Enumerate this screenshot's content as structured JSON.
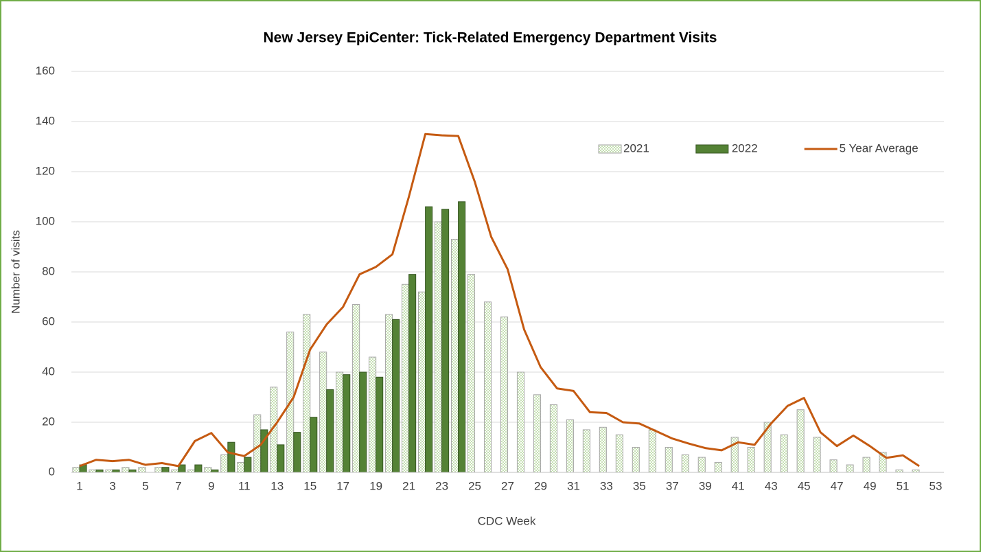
{
  "chart_data": {
    "type": "bar-line",
    "title": "New Jersey EpiCenter: Tick-Related Emergency Department Visits",
    "x_label": "CDC Week",
    "y_label": "Number of visits",
    "categories": [
      1,
      null,
      3,
      null,
      5,
      null,
      7,
      null,
      9,
      null,
      11,
      null,
      13,
      null,
      15,
      null,
      17,
      null,
      19,
      null,
      21,
      null,
      23,
      null,
      25,
      null,
      27,
      null,
      29,
      null,
      31,
      null,
      33,
      null,
      35,
      null,
      37,
      null,
      39,
      null,
      41,
      null,
      43,
      null,
      45,
      null,
      47,
      null,
      49,
      null,
      51,
      null,
      53
    ],
    "series": [
      {
        "name": "2021",
        "kind": "bar",
        "color": "#c6e0b4",
        "values": [
          2,
          1,
          1,
          2,
          2,
          2,
          1,
          1,
          2,
          7,
          4,
          23,
          34,
          56,
          63,
          48,
          40,
          67,
          46,
          63,
          75,
          72,
          100,
          93,
          79,
          68,
          62,
          40,
          31,
          27,
          21,
          17,
          18,
          15,
          10,
          17,
          10,
          7,
          6,
          4,
          14,
          10,
          20,
          15,
          25,
          14,
          5,
          3,
          6,
          8,
          1,
          1,
          null
        ]
      },
      {
        "name": "2022",
        "kind": "bar",
        "color": "#548235",
        "values": [
          3,
          1,
          1,
          1,
          0,
          2,
          3,
          3,
          1,
          12,
          6,
          17,
          11,
          16,
          22,
          33,
          39,
          40,
          38,
          61,
          79,
          106,
          105,
          108,
          null,
          null,
          null,
          null,
          null,
          null,
          null,
          null,
          null,
          null,
          null,
          null,
          null,
          null,
          null,
          null,
          null,
          null,
          null,
          null,
          null,
          null,
          null,
          null,
          null,
          null,
          null,
          null,
          null
        ]
      },
      {
        "name": "5 Year Average",
        "kind": "line",
        "color": "#c55a11",
        "values": [
          2.5,
          5,
          4.5,
          5,
          3,
          3.7,
          2.5,
          12.5,
          15.7,
          8,
          6.5,
          11,
          20,
          30,
          49,
          59,
          66,
          79,
          82,
          87,
          110,
          135,
          134.5,
          134.2,
          116,
          94,
          81,
          57,
          42,
          33.5,
          32.5,
          24,
          23.7,
          20,
          19.5,
          16.5,
          13.5,
          11.5,
          9.7,
          8.8,
          12,
          11,
          19.5,
          26.5,
          29.7,
          16,
          10.5,
          14.7,
          10.5,
          5.8,
          6.8,
          2.5,
          null
        ]
      }
    ],
    "ylim": [
      0,
      160
    ],
    "yticks": [
      0,
      20,
      40,
      60,
      80,
      100,
      120,
      140,
      160
    ],
    "grid": true,
    "legend": "upper-right"
  }
}
